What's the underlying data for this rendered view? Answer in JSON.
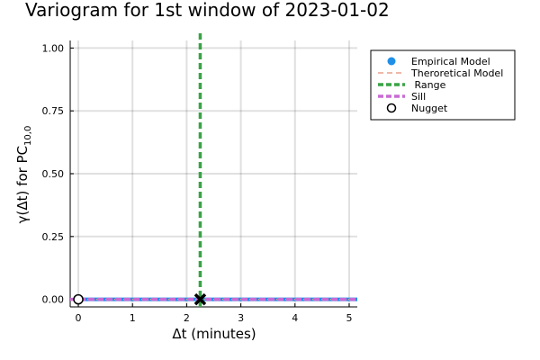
{
  "chart_data": {
    "type": "line",
    "title": "Variogram for 1st window of 2023-01-02",
    "xlabel": "Δt (minutes)",
    "ylabel": {
      "main": "γ(Δt) for PC",
      "subscript": "10,0"
    },
    "xlim": [
      -0.15,
      5.15
    ],
    "ylim": [
      -0.03,
      1.03
    ],
    "xticks": [
      0,
      1,
      2,
      3,
      4,
      5
    ],
    "xtick_labels": [
      "0",
      "1",
      "2",
      "3",
      "4",
      "5"
    ],
    "yticks": [
      0.0,
      0.25,
      0.5,
      0.75,
      1.0
    ],
    "ytick_labels": [
      "0.00",
      "0.25",
      "0.50",
      "0.75",
      "1.00"
    ],
    "grid": true,
    "legend_position": "outside-top-right",
    "series": [
      {
        "name": "Empirical Model",
        "style": "line-with-markers",
        "color": "#1f8fe8",
        "x": [
          0,
          5.15
        ],
        "y": [
          0,
          0
        ]
      },
      {
        "name": "Theroretical Model",
        "style": "dashed",
        "color": "#e8a08a",
        "x": [
          0,
          5.15
        ],
        "y": [
          0,
          0
        ]
      },
      {
        "name": " Range",
        "style": "vline-dashed",
        "color": "#3aa346",
        "x": 2.25
      },
      {
        "name": "Sill",
        "style": "hline-dashed",
        "color": "#c96bd4",
        "y": 0
      },
      {
        "name": "Nugget",
        "style": "open-circle",
        "color": "#000000",
        "x": 0,
        "y": 0
      }
    ],
    "range_marker": {
      "symbol": "x",
      "x": 2.25,
      "y": 0,
      "color": "#000000"
    }
  }
}
